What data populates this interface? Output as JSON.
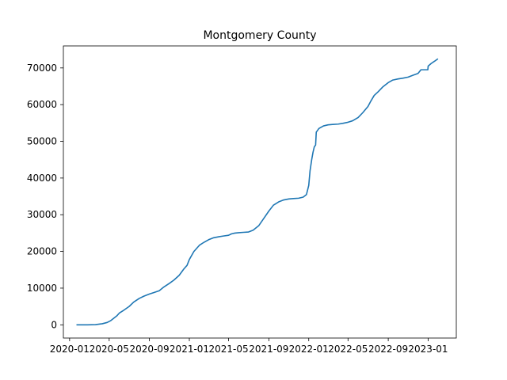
{
  "chart_data": {
    "type": "line",
    "title": "Montgomery County",
    "xlabel": "",
    "ylabel": "",
    "x_axis_type": "date",
    "xlim": [
      "2019-12-13",
      "2023-03-28"
    ],
    "ylim": [
      -3600,
      76000
    ],
    "grid": false,
    "legend": "none",
    "x_ticks": [
      {
        "date": "2020-01-01",
        "label": "2020-01"
      },
      {
        "date": "2020-05-01",
        "label": "2020-05"
      },
      {
        "date": "2020-09-01",
        "label": "2020-09"
      },
      {
        "date": "2021-01-01",
        "label": "2021-01"
      },
      {
        "date": "2021-05-01",
        "label": "2021-05"
      },
      {
        "date": "2021-09-01",
        "label": "2021-09"
      },
      {
        "date": "2022-01-01",
        "label": "2022-01"
      },
      {
        "date": "2022-05-01",
        "label": "2022-05"
      },
      {
        "date": "2022-09-01",
        "label": "2022-09"
      },
      {
        "date": "2023-01-01",
        "label": "2023-01"
      }
    ],
    "y_ticks": [
      {
        "value": 0,
        "label": "0"
      },
      {
        "value": 10000,
        "label": "10000"
      },
      {
        "value": 20000,
        "label": "20000"
      },
      {
        "value": 30000,
        "label": "30000"
      },
      {
        "value": 40000,
        "label": "40000"
      },
      {
        "value": 50000,
        "label": "50000"
      },
      {
        "value": 60000,
        "label": "60000"
      },
      {
        "value": 70000,
        "label": "70000"
      }
    ],
    "series": [
      {
        "color": "#1f77b4",
        "points": [
          [
            "2020-01-22",
            0
          ],
          [
            "2020-02-25",
            0
          ],
          [
            "2020-03-20",
            50
          ],
          [
            "2020-04-10",
            300
          ],
          [
            "2020-04-25",
            650
          ],
          [
            "2020-05-05",
            1100
          ],
          [
            "2020-05-15",
            1800
          ],
          [
            "2020-05-25",
            2500
          ],
          [
            "2020-06-01",
            3200
          ],
          [
            "2020-06-15",
            4000
          ],
          [
            "2020-07-01",
            5000
          ],
          [
            "2020-07-15",
            6200
          ],
          [
            "2020-08-01",
            7200
          ],
          [
            "2020-08-15",
            7800
          ],
          [
            "2020-09-01",
            8400
          ],
          [
            "2020-09-15",
            8800
          ],
          [
            "2020-10-01",
            9300
          ],
          [
            "2020-10-15",
            10300
          ],
          [
            "2020-11-01",
            11300
          ],
          [
            "2020-11-15",
            12200
          ],
          [
            "2020-12-01",
            13500
          ],
          [
            "2020-12-15",
            15200
          ],
          [
            "2020-12-25",
            16200
          ],
          [
            "2021-01-01",
            17800
          ],
          [
            "2021-01-15",
            20000
          ],
          [
            "2021-02-01",
            21700
          ],
          [
            "2021-02-15",
            22500
          ],
          [
            "2021-03-01",
            23200
          ],
          [
            "2021-03-15",
            23700
          ],
          [
            "2021-04-01",
            24000
          ],
          [
            "2021-04-15",
            24200
          ],
          [
            "2021-05-01",
            24400
          ],
          [
            "2021-05-10",
            24800
          ],
          [
            "2021-05-20",
            25000
          ],
          [
            "2021-06-01",
            25100
          ],
          [
            "2021-06-15",
            25200
          ],
          [
            "2021-07-01",
            25300
          ],
          [
            "2021-07-15",
            25800
          ],
          [
            "2021-08-01",
            27000
          ],
          [
            "2021-08-15",
            28800
          ],
          [
            "2021-09-01",
            31000
          ],
          [
            "2021-09-15",
            32600
          ],
          [
            "2021-10-01",
            33500
          ],
          [
            "2021-10-15",
            34000
          ],
          [
            "2021-11-01",
            34300
          ],
          [
            "2021-11-15",
            34400
          ],
          [
            "2021-12-01",
            34500
          ],
          [
            "2021-12-15",
            34800
          ],
          [
            "2021-12-25",
            35500
          ],
          [
            "2022-01-01",
            38000
          ],
          [
            "2022-01-05",
            42000
          ],
          [
            "2022-01-10",
            45000
          ],
          [
            "2022-01-14",
            47000
          ],
          [
            "2022-01-18",
            48500
          ],
          [
            "2022-01-22",
            49000
          ],
          [
            "2022-01-24",
            52500
          ],
          [
            "2022-02-01",
            53500
          ],
          [
            "2022-02-15",
            54200
          ],
          [
            "2022-03-01",
            54500
          ],
          [
            "2022-03-15",
            54600
          ],
          [
            "2022-04-01",
            54700
          ],
          [
            "2022-04-15",
            54900
          ],
          [
            "2022-05-01",
            55200
          ],
          [
            "2022-05-15",
            55600
          ],
          [
            "2022-06-01",
            56500
          ],
          [
            "2022-06-15",
            57800
          ],
          [
            "2022-07-01",
            59500
          ],
          [
            "2022-07-10",
            61000
          ],
          [
            "2022-07-20",
            62500
          ],
          [
            "2022-08-01",
            63500
          ],
          [
            "2022-08-15",
            64800
          ],
          [
            "2022-09-01",
            66000
          ],
          [
            "2022-09-15",
            66700
          ],
          [
            "2022-10-01",
            67000
          ],
          [
            "2022-10-15",
            67200
          ],
          [
            "2022-11-01",
            67500
          ],
          [
            "2022-11-15",
            68000
          ],
          [
            "2022-12-01",
            68500
          ],
          [
            "2022-12-10",
            69500
          ],
          [
            "2022-12-31",
            69500
          ],
          [
            "2023-01-01",
            70500
          ],
          [
            "2023-01-10",
            71200
          ],
          [
            "2023-01-20",
            71800
          ],
          [
            "2023-01-31",
            72500
          ]
        ]
      }
    ]
  }
}
